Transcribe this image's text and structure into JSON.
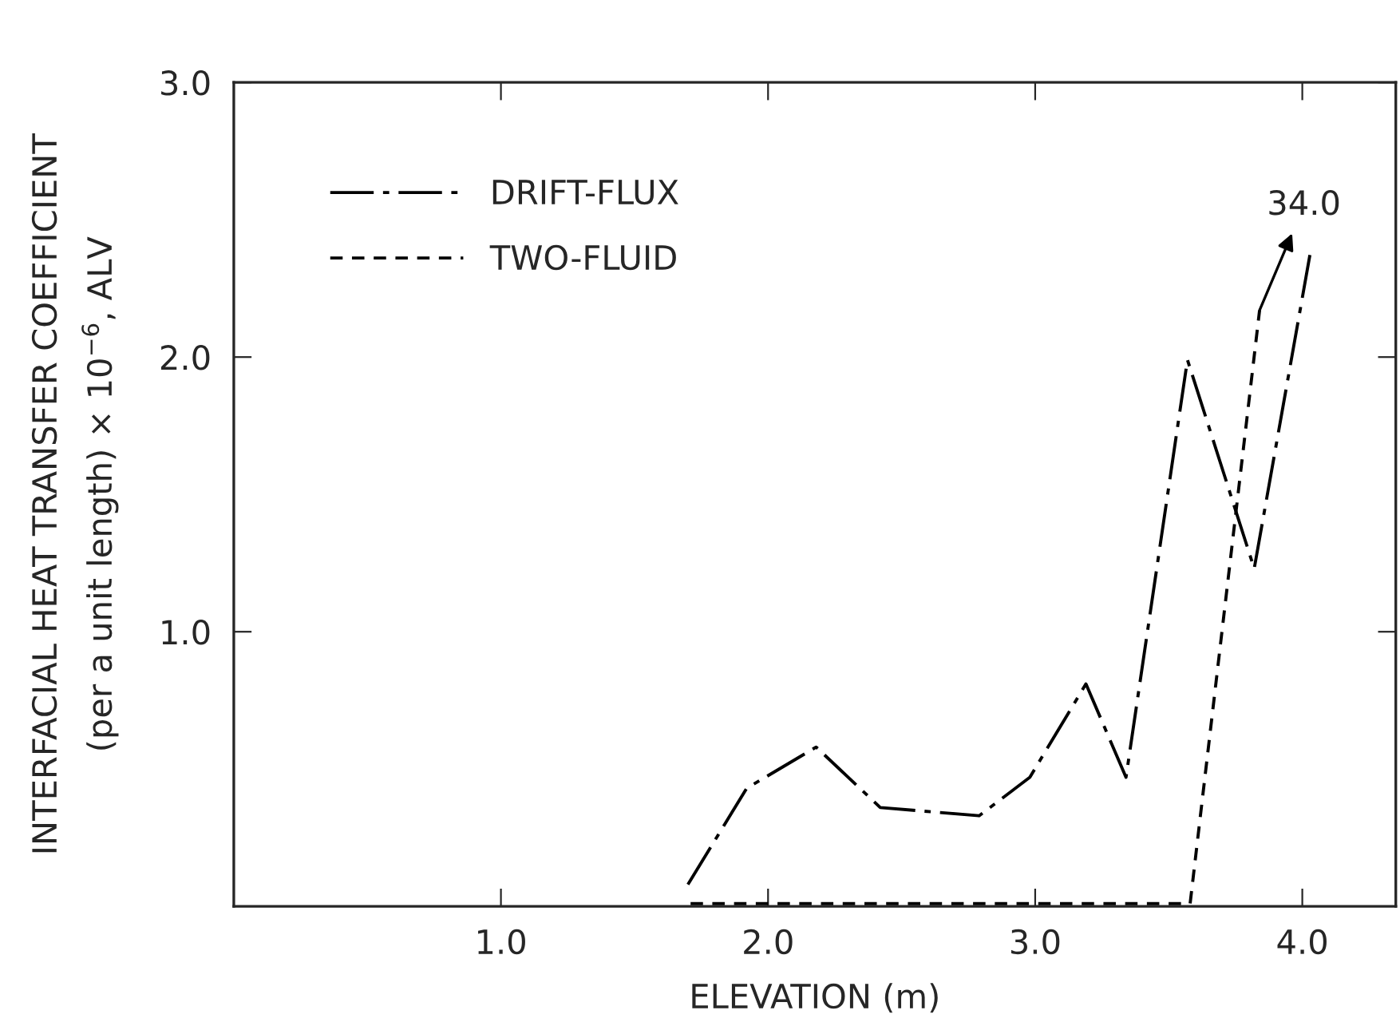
{
  "chart_data": {
    "type": "line",
    "xlabel": "ELEVATION (m)",
    "ylabel": "INTERFACIAL HEAT TRANSFER COEFFICIENT\n(per a unit length) × 10$^{−6}$, ALV",
    "series": [
      {
        "name": "DRIFT-FLUX",
        "color": "#000000",
        "line_style": "dashdot",
        "x": [
          1.7,
          1.92,
          2.18,
          2.42,
          2.79,
          2.98,
          3.19,
          3.34,
          3.57,
          3.82,
          4.03
        ],
        "values": [
          0.08,
          0.43,
          0.58,
          0.36,
          0.33,
          0.47,
          0.81,
          0.47,
          1.99,
          1.23,
          2.38
        ]
      },
      {
        "name": "TWO-FLUID",
        "color": "#000000",
        "line_style": "dashed",
        "x": [
          1.71,
          3.58,
          3.84
        ],
        "values": [
          0.01,
          0.01,
          2.17
        ]
      }
    ],
    "annotations": [
      {
        "text": "34.0",
        "x": 3.84,
        "y": 2.17
      }
    ],
    "xlim": [
      0,
      4.35
    ],
    "ylim": [
      0,
      3.0
    ],
    "xticks": [
      {
        "value": 1,
        "label": "1.0"
      },
      {
        "value": 2,
        "label": "2.0"
      },
      {
        "value": 3,
        "label": "3.0"
      },
      {
        "value": 4,
        "label": "4.0"
      }
    ],
    "yticks": [
      {
        "value": 1,
        "label": "1.0"
      },
      {
        "value": 2,
        "label": "2.0"
      },
      {
        "value": 3,
        "label": "3.0"
      }
    ],
    "legend": "top left",
    "grid": false,
    "marker": "none"
  }
}
